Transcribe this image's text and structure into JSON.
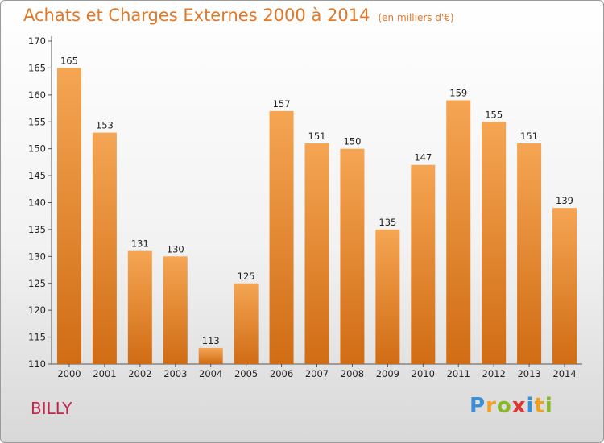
{
  "header": {
    "title": "Achats et Charges Externes 2000 à 2014",
    "subtitle": "(en milliers d'€)"
  },
  "footer": {
    "town": "BILLY",
    "logo_text": "Proxiti"
  },
  "colors": {
    "bar_top": "#f5a553",
    "bar_bottom": "#d06c14",
    "title": "#e0782a",
    "town": "#c0284a"
  },
  "chart_data": {
    "type": "bar",
    "title": "Achats et Charges Externes 2000 à 2014",
    "subtitle": "(en milliers d'€)",
    "categories": [
      "2000",
      "2001",
      "2002",
      "2003",
      "2004",
      "2005",
      "2006",
      "2007",
      "2008",
      "2009",
      "2010",
      "2011",
      "2012",
      "2013",
      "2014"
    ],
    "values": [
      165,
      153,
      131,
      130,
      113,
      125,
      157,
      151,
      150,
      135,
      147,
      159,
      155,
      151,
      139
    ],
    "ylim": [
      110,
      170
    ],
    "yticks": [
      110,
      115,
      120,
      125,
      130,
      135,
      140,
      145,
      150,
      155,
      160,
      165,
      170
    ],
    "grid": false,
    "legend": "none"
  }
}
